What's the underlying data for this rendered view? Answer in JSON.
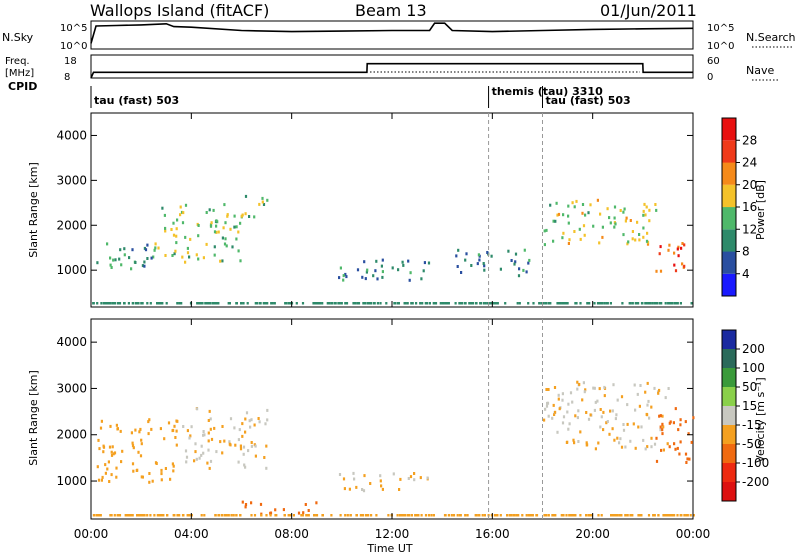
{
  "header": {
    "station": "Wallops Island (fitACF)",
    "beam": "Beam 13",
    "date": "01/Jun/2011"
  },
  "strip": {
    "nsky_label": "N.Sky",
    "nsky_ticks": [
      "10^5",
      "10^0"
    ],
    "nsearch_ticks": [
      "10^5",
      "10^0"
    ],
    "nsearch_label": "N.Search",
    "freq_label": "Freq.",
    "freq_unit": "[MHz]",
    "freq_ticks": [
      "18",
      "8"
    ],
    "nave_ticks": [
      "60",
      "0"
    ],
    "nave_label": "Nave",
    "cpid_label": "CPID"
  },
  "chart_data": [
    {
      "type": "line",
      "title": "",
      "panel": "N.Sky / N.Search",
      "x": [
        0,
        0.2,
        1,
        2,
        3,
        3.3,
        4,
        6,
        8,
        10,
        12,
        13.5,
        13.7,
        14.1,
        14.4,
        16,
        18,
        20,
        22,
        24
      ],
      "series": [
        {
          "name": "N.Sky",
          "values": [
            1.0,
            4.1,
            4.2,
            4.3,
            4.5,
            4.0,
            3.9,
            3.3,
            3.1,
            3.2,
            3.3,
            3.3,
            4.6,
            4.6,
            3.3,
            3.1,
            3.3,
            3.5,
            3.6,
            3.7
          ]
        }
      ],
      "ylim": [
        0,
        5
      ]
    },
    {
      "type": "line",
      "title": "",
      "panel": "Freq / Nave",
      "x": [
        0,
        0.1,
        11.0,
        11.01,
        22.0,
        22.01,
        24
      ],
      "series": [
        {
          "name": "Freq.",
          "values": [
            8,
            10.5,
            10.5,
            14.2,
            14.2,
            10.5,
            10.5
          ]
        }
      ],
      "ylim": [
        8,
        18
      ]
    },
    {
      "type": "table",
      "panel": "CPID",
      "programs": [
        {
          "start": 0,
          "label": "tau (fast) 503"
        },
        {
          "start": 15.85,
          "label": "themis (tau) 3310"
        },
        {
          "start": 18.0,
          "label": "tau (fast) 503"
        }
      ]
    },
    {
      "type": "heatmap",
      "title": "",
      "panel": "Power",
      "xlabel": "",
      "ylabel": "Slant Range [km]",
      "xlim": [
        0,
        24
      ],
      "ylim": [
        180,
        4500
      ],
      "yticks": [
        1000,
        2000,
        3000,
        4000
      ],
      "colorbar": {
        "label": "Power [dB]",
        "ticks": [
          4,
          8,
          12,
          16,
          20,
          24,
          28
        ],
        "range": [
          0,
          30
        ],
        "colors": [
          "#1a1aff",
          "#2a4fa0",
          "#2e8a6a",
          "#4fb86a",
          "#f4c22a",
          "#f58a1a",
          "#ef3a1a",
          "#e81010"
        ]
      },
      "echo_bands": [
        {
          "t": [
            0.2,
            2.5
          ],
          "r": [
            1000,
            1700
          ],
          "p": 11
        },
        {
          "t": [
            2.5,
            6.0
          ],
          "r": [
            1200,
            2500
          ],
          "p": 15
        },
        {
          "t": [
            6.0,
            7.0
          ],
          "r": [
            2200,
            2800
          ],
          "p": 12
        },
        {
          "t": [
            9.8,
            13.5
          ],
          "r": [
            800,
            1300
          ],
          "p": 9
        },
        {
          "t": [
            14.5,
            17.5
          ],
          "r": [
            900,
            1500
          ],
          "p": 9
        },
        {
          "t": [
            18.0,
            22.5
          ],
          "r": [
            1600,
            2600
          ],
          "p": 16
        },
        {
          "t": [
            22.5,
            24.0
          ],
          "r": [
            1000,
            1700
          ],
          "p": 27
        }
      ]
    },
    {
      "type": "heatmap",
      "title": "",
      "panel": "Velocity",
      "xlabel": "Time UT",
      "ylabel": "Slant Range [km]",
      "xlim": [
        0,
        24
      ],
      "ylim": [
        180,
        4500
      ],
      "yticks": [
        1000,
        2000,
        3000,
        4000
      ],
      "xticks": [
        "00:00",
        "04:00",
        "08:00",
        "12:00",
        "16:00",
        "20:00",
        "00:00"
      ],
      "colorbar": {
        "label": "Velocity [m s⁻¹]",
        "ticks": [
          200,
          100,
          50,
          15,
          -15,
          -50,
          -100,
          -200
        ],
        "colors": [
          "#1a2aa0",
          "#2a6a5a",
          "#3a9a3a",
          "#8ad04a",
          "#c8c8c0",
          "#f4a020",
          "#f06a10",
          "#ee2a10",
          "#dd1010"
        ]
      },
      "echo_bands": [
        {
          "t": [
            0.2,
            3.5
          ],
          "r": [
            1000,
            2400
          ],
          "v": -10
        },
        {
          "t": [
            3.5,
            7.0
          ],
          "r": [
            1300,
            2600
          ],
          "v": 0
        },
        {
          "t": [
            6.0,
            9.0
          ],
          "r": [
            300,
            600
          ],
          "v": -40
        },
        {
          "t": [
            9.8,
            13.5
          ],
          "r": [
            800,
            1200
          ],
          "v": 0
        },
        {
          "t": [
            18.0,
            23.0
          ],
          "r": [
            1700,
            3200
          ],
          "v": 0
        },
        {
          "t": [
            22.5,
            24.0
          ],
          "r": [
            1400,
            2600
          ],
          "v": -40
        }
      ]
    }
  ]
}
